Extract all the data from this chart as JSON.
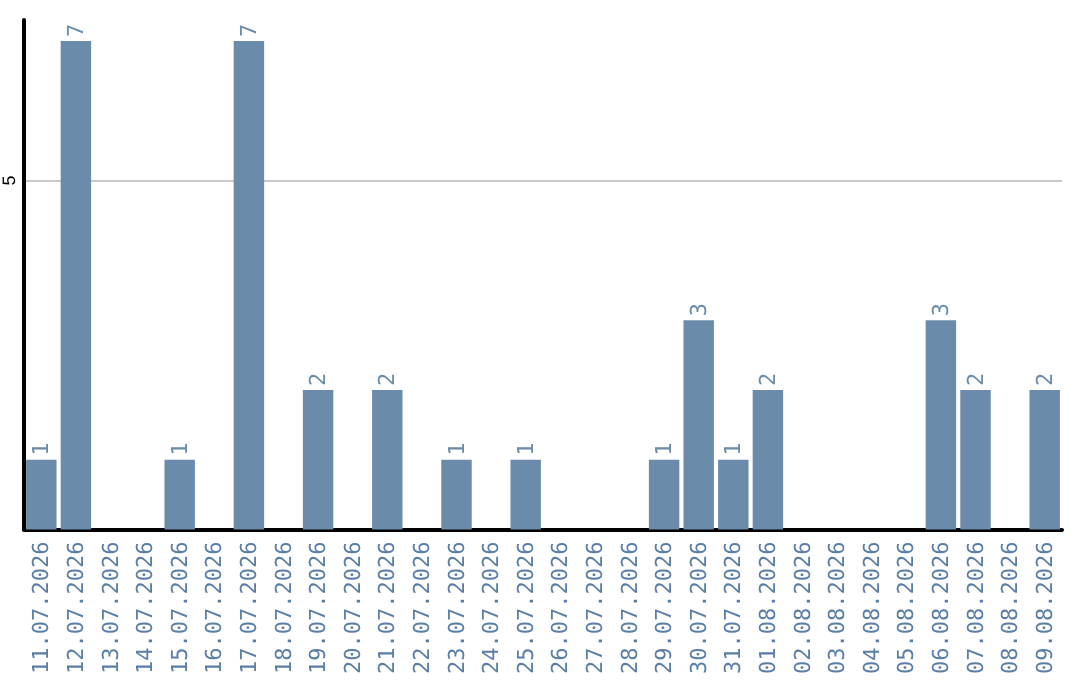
{
  "chart_data": {
    "type": "bar",
    "categories": [
      "11.07.2026",
      "12.07.2026",
      "13.07.2026",
      "14.07.2026",
      "15.07.2026",
      "16.07.2026",
      "17.07.2026",
      "18.07.2026",
      "19.07.2026",
      "20.07.2026",
      "21.07.2026",
      "22.07.2026",
      "23.07.2026",
      "24.07.2026",
      "25.07.2026",
      "26.07.2026",
      "27.07.2026",
      "28.07.2026",
      "29.07.2026",
      "30.07.2026",
      "31.07.2026",
      "01.08.2026",
      "02.08.2026",
      "03.08.2026",
      "04.08.2026",
      "05.08.2026",
      "06.08.2026",
      "07.08.2026",
      "08.08.2026",
      "09.08.2026"
    ],
    "values": [
      1,
      7,
      0,
      0,
      1,
      0,
      7,
      0,
      2,
      0,
      2,
      0,
      1,
      0,
      1,
      0,
      0,
      0,
      1,
      3,
      1,
      2,
      0,
      0,
      0,
      0,
      3,
      2,
      0,
      2
    ],
    "value_labels": [
      "1",
      "7",
      null,
      null,
      "1",
      null,
      "7",
      null,
      "2",
      null,
      "2",
      null,
      "1",
      null,
      "1",
      null,
      null,
      null,
      "1",
      "3",
      "1",
      "2",
      null,
      null,
      null,
      null,
      "3",
      "2",
      null,
      "2"
    ],
    "color": "#6a8caa",
    "ylim": [
      0,
      7.3
    ],
    "yticks": [
      5
    ],
    "grid": "y"
  }
}
